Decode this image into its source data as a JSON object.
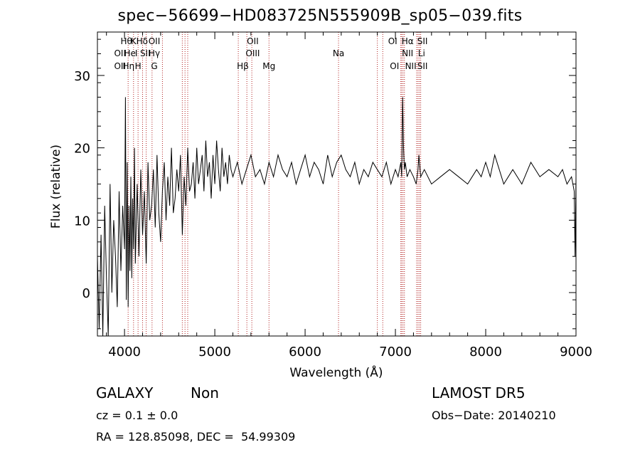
{
  "header": {
    "title": "spec−56699−HD083725N555909B_sp05−039.fits"
  },
  "info": {
    "object_class": "GALAXY",
    "subclass": "Non",
    "survey": "LAMOST  DR5",
    "cz": "cz = 0.1 ± 0.0",
    "obs_date": "Obs−Date: 20140210",
    "radec": "RA = 128.85098, DEC =  54.99309"
  },
  "chart_data": {
    "type": "line",
    "title": "spec−56699−HD083725N555909B_sp05−039.fits",
    "xlabel": "Wavelength (Å)",
    "ylabel": "Flux (relative)",
    "xlim": [
      3700,
      9000
    ],
    "ylim": [
      -6,
      36
    ],
    "xticks": [
      4000,
      5000,
      6000,
      7000,
      8000,
      9000
    ],
    "yticks": [
      0,
      10,
      20,
      30
    ],
    "grid": false,
    "line_color": "#000000",
    "marker_color": "#b22222",
    "series": [
      {
        "values_x": [
          3700,
          3720,
          3740,
          3760,
          3780,
          3800,
          3820,
          3840,
          3860,
          3880,
          3900,
          3920,
          3940,
          3960,
          3980,
          4000,
          4010,
          4020,
          4030,
          4040,
          4050,
          4060,
          4070,
          4080,
          4090,
          4100,
          4110,
          4120,
          4140,
          4160,
          4180,
          4200,
          4220,
          4240,
          4260,
          4280,
          4300,
          4320,
          4340,
          4360,
          4380,
          4400,
          4420,
          4440,
          4460,
          4480,
          4500,
          4520,
          4540,
          4560,
          4580,
          4600,
          4620,
          4640,
          4660,
          4680,
          4700,
          4720,
          4740,
          4760,
          4780,
          4800,
          4820,
          4840,
          4860,
          4880,
          4900,
          4920,
          4940,
          4960,
          4980,
          5000,
          5020,
          5040,
          5060,
          5080,
          5100,
          5120,
          5140,
          5160,
          5180,
          5200,
          5250,
          5300,
          5350,
          5400,
          5450,
          5500,
          5550,
          5600,
          5650,
          5700,
          5750,
          5800,
          5850,
          5900,
          5950,
          6000,
          6050,
          6100,
          6150,
          6200,
          6250,
          6300,
          6350,
          6400,
          6450,
          6500,
          6550,
          6600,
          6650,
          6700,
          6750,
          6800,
          6850,
          6900,
          6950,
          7000,
          7030,
          7060,
          7070,
          7080,
          7090,
          7100,
          7110,
          7130,
          7160,
          7200,
          7230,
          7250,
          7260,
          7280,
          7320,
          7400,
          7500,
          7600,
          7700,
          7800,
          7850,
          7900,
          7950,
          8000,
          8050,
          8100,
          8150,
          8200,
          8250,
          8300,
          8400,
          8500,
          8600,
          8700,
          8800,
          8850,
          8900,
          8950,
          8980,
          8990,
          9000
        ],
        "values_y": [
          5,
          -5,
          8,
          -6,
          12,
          2,
          -6,
          15,
          0,
          10,
          5,
          -2,
          14,
          3,
          12,
          6,
          27,
          -1,
          18,
          -2,
          12,
          3,
          16,
          2,
          13,
          6,
          20,
          4,
          15,
          5,
          17,
          8,
          14,
          4,
          18,
          10,
          12,
          17,
          9,
          19,
          11,
          7,
          14,
          18,
          10,
          16,
          12,
          20,
          11,
          13,
          17,
          14,
          19,
          8,
          16,
          12,
          20,
          14,
          15,
          18,
          13,
          20,
          15,
          17,
          19,
          14,
          21,
          16,
          18,
          13,
          19,
          15,
          21,
          17,
          14,
          20,
          16,
          18,
          15,
          19,
          17,
          16,
          18,
          15,
          17,
          19,
          16,
          17,
          15,
          18,
          16,
          19,
          17,
          16,
          18,
          15,
          17,
          19,
          16,
          18,
          17,
          15,
          19,
          16,
          18,
          19,
          17,
          16,
          18,
          15,
          17,
          16,
          18,
          17,
          16,
          18,
          15,
          17,
          16,
          18,
          16,
          27,
          20,
          17,
          18,
          16,
          17,
          16,
          15,
          17,
          19,
          16,
          17,
          15,
          16,
          17,
          16,
          15,
          16,
          17,
          16,
          18,
          16,
          19,
          17,
          15,
          16,
          17,
          15,
          18,
          16,
          17,
          16,
          17,
          15,
          16,
          14,
          5,
          16
        ]
      }
    ],
    "line_markers": [
      {
        "x": 3727,
        "label": "OII"
      },
      {
        "x": 3933,
        "label": "K"
      },
      {
        "x": 3969,
        "label": "H"
      },
      {
        "x": 4102,
        "label": "Hδ"
      },
      {
        "x": 4304,
        "label": "G"
      },
      {
        "x": 4341,
        "label": "Hγ"
      },
      {
        "x": 4861,
        "label": "Hβ"
      },
      {
        "x": 4959,
        "label": "OIII"
      },
      {
        "x": 5007,
        "label": "OIII"
      },
      {
        "x": 5175,
        "label": "Mg"
      },
      {
        "x": 5893,
        "label": "Na"
      },
      {
        "x": 6300,
        "label": "OI"
      },
      {
        "x": 6364,
        "label": "OI"
      },
      {
        "x": 6548,
        "label": "NII"
      },
      {
        "x": 6563,
        "label": "Hα"
      },
      {
        "x": 6583,
        "label": "NII"
      },
      {
        "x": 6708,
        "label": "Li"
      },
      {
        "x": 6716,
        "label": "SII"
      },
      {
        "x": 6731,
        "label": "SII"
      }
    ],
    "marker_labels": [
      {
        "x": 4020,
        "row": 0,
        "text": "Hθ"
      },
      {
        "x": 4100,
        "row": 0,
        "text": "K"
      },
      {
        "x": 4195,
        "row": 0,
        "text": "Hδ"
      },
      {
        "x": 4330,
        "row": 0,
        "text": "OII"
      },
      {
        "x": 5420,
        "row": 0,
        "text": "OII"
      },
      {
        "x": 6970,
        "row": 0,
        "text": "OI"
      },
      {
        "x": 7135,
        "row": 0,
        "text": "Hα"
      },
      {
        "x": 7300,
        "row": 0,
        "text": "SII"
      },
      {
        "x": 3950,
        "row": 1,
        "text": "OII"
      },
      {
        "x": 4060,
        "row": 1,
        "text": "He"
      },
      {
        "x": 4130,
        "row": 1,
        "text": "I"
      },
      {
        "x": 4230,
        "row": 1,
        "text": "SII"
      },
      {
        "x": 4330,
        "row": 1,
        "text": "Hγ"
      },
      {
        "x": 5420,
        "row": 1,
        "text": "OIII"
      },
      {
        "x": 6370,
        "row": 1,
        "text": "Na"
      },
      {
        "x": 7135,
        "row": 1,
        "text": "NII"
      },
      {
        "x": 7290,
        "row": 1,
        "text": "Li"
      },
      {
        "x": 3950,
        "row": 2,
        "text": "OII"
      },
      {
        "x": 4045,
        "row": 2,
        "text": "Hη"
      },
      {
        "x": 4150,
        "row": 2,
        "text": "H"
      },
      {
        "x": 4330,
        "row": 2,
        "text": "G"
      },
      {
        "x": 5310,
        "row": 2,
        "text": "Hβ"
      },
      {
        "x": 5600,
        "row": 2,
        "text": "Mg"
      },
      {
        "x": 6990,
        "row": 2,
        "text": "OI"
      },
      {
        "x": 7170,
        "row": 2,
        "text": "NII"
      },
      {
        "x": 7300,
        "row": 2,
        "text": "SII"
      }
    ],
    "red_lines": [
      4040,
      4100,
      4150,
      4200,
      4240,
      4305,
      4420,
      4640,
      4670,
      4700,
      5260,
      5355,
      5410,
      5600,
      6370,
      6800,
      6860,
      7060,
      7070,
      7085,
      7100,
      7235,
      7250,
      7265,
      7280
    ]
  }
}
